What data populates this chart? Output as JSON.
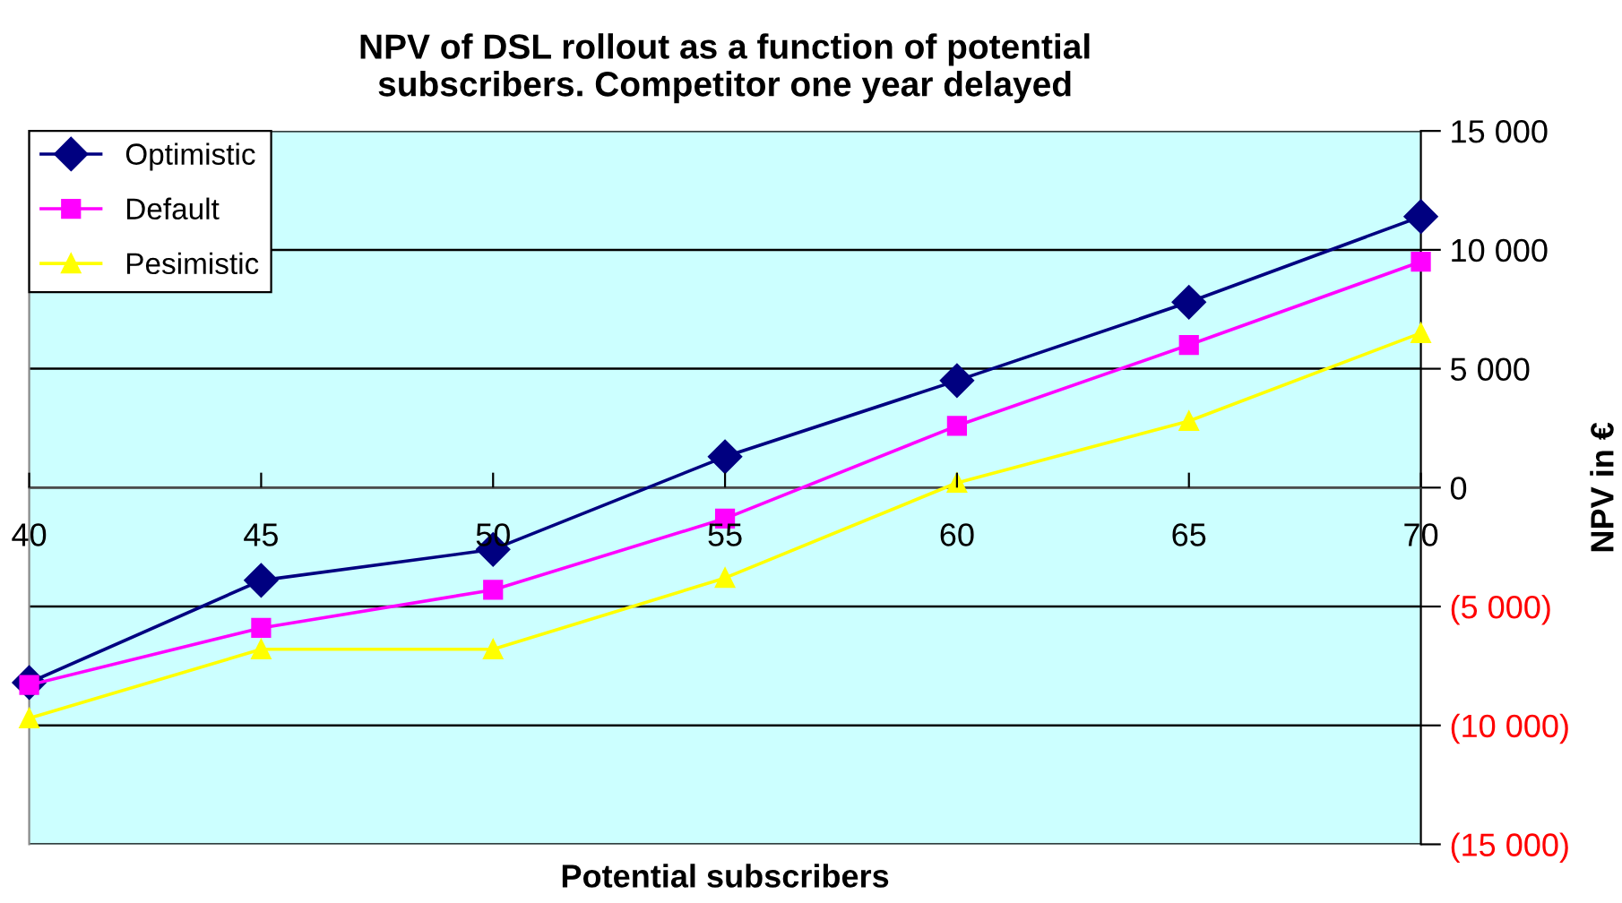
{
  "chart_data": {
    "type": "line",
    "title": "NPV of DSL rollout as a function of potential\nsubscribers. Competitor one year delayed",
    "xlabel": "Potential subscribers",
    "ylabel": "NPV in €",
    "x": [
      40,
      45,
      50,
      55,
      60,
      65,
      70
    ],
    "series": [
      {
        "name": "Optimistic",
        "color": "#000080",
        "marker": "diamond",
        "values": [
          -8200,
          -3900,
          -2600,
          1300,
          4500,
          7800,
          11400
        ]
      },
      {
        "name": "Default",
        "color": "#ff00ff",
        "marker": "square",
        "values": [
          -8300,
          -5900,
          -4300,
          -1300,
          2600,
          6000,
          9500
        ]
      },
      {
        "name": "Pesimistic",
        "color": "#ffff00",
        "marker": "triangle",
        "values": [
          -9700,
          -6800,
          -6800,
          -3800,
          200,
          2800,
          6500
        ]
      }
    ],
    "xlim": [
      40,
      70
    ],
    "xticks": [
      40,
      45,
      50,
      55,
      60,
      65,
      70
    ],
    "ylim": [
      -15000,
      15000
    ],
    "yticks": [
      {
        "value": -15000,
        "label": "(15 000)"
      },
      {
        "value": -10000,
        "label": "(10 000)"
      },
      {
        "value": -5000,
        "label": "(5 000)"
      },
      0,
      {
        "value": 5000,
        "label": "5 000"
      },
      {
        "value": 10000,
        "label": "10 000"
      },
      {
        "value": 15000,
        "label": "15 000"
      }
    ],
    "grid": "y",
    "legend": "top left"
  }
}
